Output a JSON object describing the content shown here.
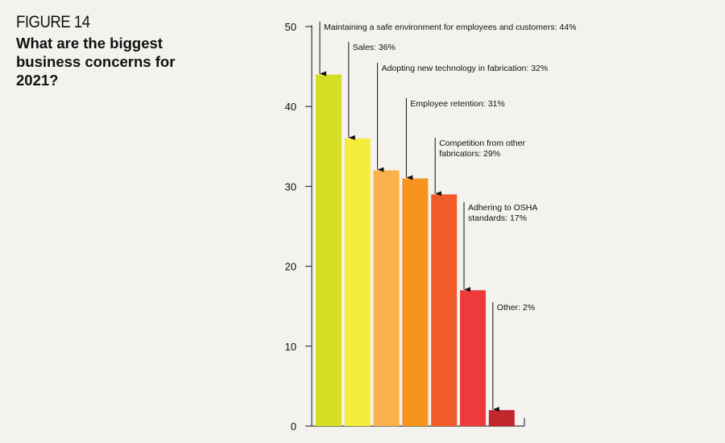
{
  "figure": {
    "label": "FIGURE 14",
    "title": "What are the biggest business concerns for 2021?"
  },
  "chart_data": {
    "type": "bar",
    "title": "What are the biggest business concerns for 2021?",
    "xlabel": "",
    "ylabel": "",
    "ylim": [
      0,
      50
    ],
    "yticks": [
      0,
      10,
      20,
      30,
      40,
      50
    ],
    "grid": false,
    "legend": "none",
    "categories": [
      "Maintaining a safe environment for employees and customers",
      "Sales",
      "Adopting new technology in fabrication",
      "Employee retention",
      "Competition from other fabricators",
      "Adhering to OSHA standards",
      "Other"
    ],
    "values": [
      44,
      36,
      32,
      31,
      29,
      17,
      2
    ],
    "annotations": [
      [
        "Maintaining a safe environment for employees and customers: 44%"
      ],
      [
        "Sales: 36%"
      ],
      [
        "Adopting new technology in fabrication: 32%"
      ],
      [
        "Employee retention: 31%"
      ],
      [
        "Competition from other",
        "fabricators: 29%"
      ],
      [
        "Adhering to OSHA",
        "standards: 17%"
      ],
      [
        "Other: 2%"
      ]
    ],
    "colors": [
      "#d4df26",
      "#f6ec3b",
      "#fbb14b",
      "#f7941d",
      "#f15a29",
      "#ed3b3b",
      "#c1272d"
    ]
  }
}
